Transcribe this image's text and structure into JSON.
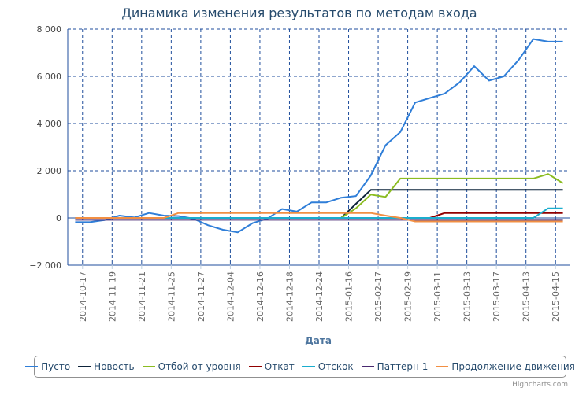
{
  "chart_data": {
    "type": "line",
    "title": "Динамика изменения результатов по методам входа",
    "xlabel": "Дата",
    "ylabel": "",
    "ylim": [
      -2000,
      8000
    ],
    "yticks": [
      -2000,
      0,
      2000,
      4000,
      6000,
      8000
    ],
    "ytick_labels": [
      "−2 000",
      "0",
      "2 000",
      "4 000",
      "6 000",
      "8 000"
    ],
    "grid": true,
    "legend_position": "bottom",
    "x_tick_labels": [
      "2014-10-17",
      "2014-11-19",
      "2014-11-21",
      "2014-11-25",
      "2014-11-27",
      "2014-12-04",
      "2014-12-16",
      "2014-12-18",
      "2014-12-24",
      "2015-01-16",
      "2015-02-17",
      "2015-02-19",
      "2015-03-11",
      "2015-03-13",
      "2015-03-17",
      "2015-04-13",
      "2015-04-15"
    ],
    "point_count": 34,
    "series": [
      {
        "name": "Пусто",
        "color": "#2f7ed8",
        "values": [
          -180,
          -180,
          -90,
          100,
          20,
          210,
          100,
          80,
          -30,
          -310,
          -500,
          -610,
          -220,
          -30,
          380,
          270,
          660,
          660,
          860,
          930,
          1800,
          3080,
          3640,
          4890,
          5080,
          5270,
          5740,
          6430,
          5820,
          6000,
          6690,
          7580,
          7470,
          7470
        ]
      },
      {
        "name": "Новость",
        "color": "#0d233a",
        "values": [
          null,
          null,
          null,
          null,
          null,
          null,
          null,
          null,
          null,
          null,
          null,
          null,
          null,
          null,
          null,
          null,
          null,
          null,
          0,
          600,
          1190,
          1190,
          1190,
          1190,
          1190,
          1190,
          1190,
          1190,
          1190,
          1190,
          1190,
          1190,
          1190,
          1190
        ]
      },
      {
        "name": "Отбой от уровня",
        "color": "#8bbc21",
        "values": [
          null,
          null,
          null,
          null,
          null,
          null,
          null,
          null,
          null,
          null,
          null,
          null,
          null,
          null,
          null,
          null,
          null,
          null,
          0,
          410,
          990,
          890,
          1670,
          1670,
          1670,
          1670,
          1670,
          1670,
          1670,
          1670,
          1670,
          1670,
          1860,
          1470
        ]
      },
      {
        "name": "Откат",
        "color": "#910000",
        "values": [
          null,
          null,
          null,
          null,
          null,
          null,
          null,
          null,
          null,
          null,
          null,
          null,
          null,
          null,
          null,
          null,
          null,
          null,
          null,
          null,
          null,
          null,
          null,
          null,
          0,
          210,
          210,
          210,
          210,
          210,
          210,
          210,
          210,
          210
        ]
      },
      {
        "name": "Отскок",
        "color": "#1aadce",
        "values": [
          0,
          0,
          0,
          0,
          0,
          0,
          0,
          0,
          0,
          0,
          0,
          0,
          0,
          0,
          0,
          0,
          0,
          0,
          0,
          0,
          0,
          0,
          0,
          0,
          0,
          0,
          0,
          0,
          0,
          0,
          0,
          0,
          410,
          410
        ]
      },
      {
        "name": "Паттерн 1",
        "color": "#492970",
        "values": [
          -80,
          -80,
          -80,
          -80,
          -80,
          -80,
          -80,
          -80,
          -80,
          -80,
          -80,
          -80,
          -80,
          -80,
          -80,
          -80,
          -80,
          -80,
          -80,
          -80,
          -80,
          -80,
          -80,
          -80,
          -80,
          -80,
          -80,
          -80,
          -80,
          -80,
          -80,
          -80,
          -80,
          -80
        ]
      },
      {
        "name": "Продолжение движения",
        "color": "#f28f43",
        "values": [
          0,
          0,
          0,
          0,
          0,
          0,
          0,
          210,
          210,
          210,
          210,
          210,
          210,
          210,
          210,
          210,
          210,
          210,
          210,
          210,
          210,
          100,
          0,
          -150,
          -150,
          -150,
          -150,
          -150,
          -150,
          -150,
          -150,
          -150,
          -150,
          -150
        ]
      }
    ]
  },
  "credit": "Highcharts.com"
}
